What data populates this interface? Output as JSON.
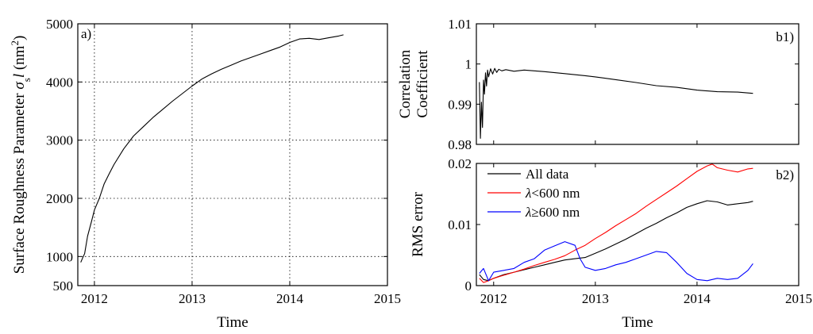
{
  "chart_data": [
    {
      "id": "a",
      "type": "line",
      "panel_label": "a)",
      "xlabel": "Time",
      "ylabel_prefix": "Surface Roughness Parameter ",
      "ylabel_symbol": "σ",
      "ylabel_sub": "s",
      "ylabel_var": "l",
      "ylabel_unit": " (nm",
      "ylabel_unit_sup": "2",
      "ylabel_close": ")",
      "xlim": [
        2011.83,
        2015.0
      ],
      "ylim": [
        500,
        5000
      ],
      "xticks": [
        2012,
        2013,
        2014,
        2015
      ],
      "xtick_labels": [
        "2012",
        "2013",
        "2014",
        "2015"
      ],
      "yticks": [
        500,
        1000,
        2000,
        3000,
        4000,
        5000
      ],
      "ytick_labels": [
        "500",
        "1000",
        "2000",
        "3000",
        "4000",
        "5000"
      ],
      "grid": true,
      "series": [
        {
          "color": "#000000",
          "x": [
            2011.86,
            2011.88,
            2011.9,
            2011.93,
            2011.97,
            2012.0,
            2012.05,
            2012.1,
            2012.15,
            2012.2,
            2012.3,
            2012.4,
            2012.5,
            2012.6,
            2012.7,
            2012.8,
            2012.9,
            2013.0,
            2013.1,
            2013.2,
            2013.3,
            2013.4,
            2013.5,
            2013.6,
            2013.7,
            2013.8,
            2013.9,
            2014.0,
            2014.1,
            2014.2,
            2014.3,
            2014.4,
            2014.5,
            2014.55
          ],
          "y": [
            900,
            980,
            1050,
            1350,
            1600,
            1800,
            2000,
            2250,
            2420,
            2580,
            2850,
            3070,
            3230,
            3390,
            3530,
            3670,
            3800,
            3930,
            4050,
            4140,
            4220,
            4290,
            4360,
            4420,
            4480,
            4540,
            4600,
            4680,
            4740,
            4750,
            4730,
            4760,
            4790,
            4810
          ]
        }
      ]
    },
    {
      "id": "b1",
      "type": "line",
      "panel_label": "b1)",
      "xlabel": "",
      "ylabel_lines": [
        "Correlation",
        "Coefficient"
      ],
      "xlim": [
        2011.83,
        2015.0
      ],
      "ylim": [
        0.98,
        1.01
      ],
      "yticks": [
        0.98,
        0.99,
        1.0,
        1.01
      ],
      "ytick_labels": [
        "0.98",
        "0.99",
        "1",
        "1.01"
      ],
      "xticks": [
        2012,
        2013,
        2014,
        2015
      ],
      "grid": false,
      "series": [
        {
          "color": "#000000",
          "x": [
            2011.86,
            2011.87,
            2011.88,
            2011.89,
            2011.9,
            2011.91,
            2011.92,
            2011.93,
            2011.94,
            2011.95,
            2011.97,
            2011.99,
            2012.01,
            2012.03,
            2012.05,
            2012.08,
            2012.12,
            2012.2,
            2012.3,
            2012.4,
            2012.5,
            2012.7,
            2012.9,
            2013.0,
            2013.2,
            2013.4,
            2013.6,
            2013.8,
            2014.0,
            2014.2,
            2014.4,
            2014.55
          ],
          "y": [
            0.9955,
            0.9815,
            0.9905,
            0.9842,
            0.996,
            0.9925,
            0.9978,
            0.9945,
            0.9985,
            0.9968,
            0.9988,
            0.9975,
            0.9989,
            0.9979,
            0.9987,
            0.9983,
            0.9986,
            0.9982,
            0.9985,
            0.9983,
            0.9981,
            0.9976,
            0.9971,
            0.9968,
            0.9961,
            0.9954,
            0.9946,
            0.9942,
            0.9935,
            0.9931,
            0.993,
            0.9927
          ]
        }
      ]
    },
    {
      "id": "b2",
      "type": "line",
      "panel_label": "b2)",
      "xlabel": "Time",
      "ylabel": "RMS error",
      "xlim": [
        2011.83,
        2015.0
      ],
      "ylim": [
        0,
        0.02
      ],
      "yticks": [
        0,
        0.01,
        0.02
      ],
      "ytick_labels": [
        "0",
        "0.01",
        "0.02"
      ],
      "xticks": [
        2012,
        2013,
        2014,
        2015
      ],
      "xtick_labels": [
        "2012",
        "2013",
        "2014",
        "2015"
      ],
      "grid": false,
      "legend_position": "top-left",
      "series": [
        {
          "name": "All data",
          "legend_parts": [
            "All data"
          ],
          "color": "#000000",
          "x": [
            2011.86,
            2011.9,
            2011.95,
            2012.0,
            2012.1,
            2012.2,
            2012.3,
            2012.4,
            2012.5,
            2012.6,
            2012.7,
            2012.8,
            2012.9,
            2013.0,
            2013.1,
            2013.2,
            2013.3,
            2013.4,
            2013.5,
            2013.6,
            2013.7,
            2013.8,
            2013.9,
            2014.0,
            2014.1,
            2014.2,
            2014.3,
            2014.4,
            2014.5,
            2014.55
          ],
          "y": [
            0.0018,
            0.001,
            0.0008,
            0.0012,
            0.0018,
            0.0022,
            0.0026,
            0.003,
            0.0034,
            0.0038,
            0.0042,
            0.0044,
            0.0046,
            0.0053,
            0.006,
            0.0068,
            0.0076,
            0.0085,
            0.0094,
            0.0102,
            0.0111,
            0.0119,
            0.0128,
            0.0134,
            0.0139,
            0.0137,
            0.0132,
            0.0134,
            0.0136,
            0.0138
          ]
        },
        {
          "name": "λ<600 nm",
          "legend_parts": [
            "λ",
            "<600 nm"
          ],
          "color": "#ff0000",
          "x": [
            2011.86,
            2011.9,
            2011.95,
            2012.0,
            2012.1,
            2012.2,
            2012.3,
            2012.4,
            2012.5,
            2012.6,
            2012.7,
            2012.8,
            2012.9,
            2013.0,
            2013.1,
            2013.2,
            2013.3,
            2013.4,
            2013.5,
            2013.6,
            2013.7,
            2013.8,
            2013.9,
            2014.0,
            2014.1,
            2014.15,
            2014.2,
            2014.3,
            2014.4,
            2014.5,
            2014.55
          ],
          "y": [
            0.0012,
            0.0005,
            0.0008,
            0.0012,
            0.0017,
            0.0022,
            0.0027,
            0.0033,
            0.0038,
            0.0043,
            0.0049,
            0.0058,
            0.0066,
            0.0077,
            0.0087,
            0.0098,
            0.0108,
            0.0118,
            0.013,
            0.0141,
            0.0152,
            0.0163,
            0.0175,
            0.0187,
            0.0196,
            0.0199,
            0.0193,
            0.0189,
            0.0186,
            0.0191,
            0.0192
          ]
        },
        {
          "name": "λ≥600 nm",
          "legend_parts": [
            "λ",
            "≥600 nm"
          ],
          "color": "#0000ff",
          "x": [
            2011.86,
            2011.9,
            2011.95,
            2012.0,
            2012.1,
            2012.2,
            2012.3,
            2012.4,
            2012.5,
            2012.6,
            2012.7,
            2012.8,
            2012.85,
            2012.9,
            2013.0,
            2013.1,
            2013.2,
            2013.3,
            2013.4,
            2013.5,
            2013.6,
            2013.7,
            2013.8,
            2013.9,
            2014.0,
            2014.1,
            2014.2,
            2014.3,
            2014.4,
            2014.5,
            2014.55
          ],
          "y": [
            0.002,
            0.0028,
            0.0008,
            0.0022,
            0.0025,
            0.0028,
            0.0038,
            0.0044,
            0.0058,
            0.0065,
            0.0072,
            0.0066,
            0.0044,
            0.003,
            0.0025,
            0.0028,
            0.0034,
            0.0038,
            0.0044,
            0.005,
            0.0056,
            0.0054,
            0.0038,
            0.002,
            0.001,
            0.0008,
            0.0012,
            0.001,
            0.0012,
            0.0025,
            0.0036
          ]
        }
      ]
    }
  ]
}
